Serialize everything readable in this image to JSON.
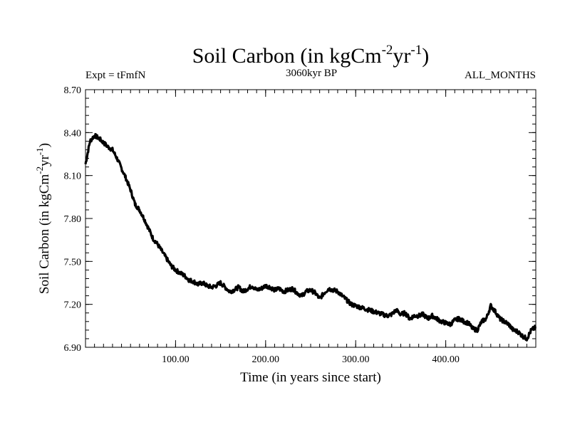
{
  "chart_data": {
    "type": "line",
    "title": "Soil Carbon (in kgCm",
    "title_sup1": "-2",
    "title_mid": "yr",
    "title_sup2": "-1",
    "title_end": ")",
    "subtitle_left": "Expt = tFmfN",
    "subtitle_center": "3060kyr BP",
    "subtitle_right": "ALL_MONTHS",
    "xlabel": "Time (in years since start)",
    "ylabel_main": "Soil Carbon (in kgCm",
    "ylabel_sup1": "-2",
    "ylabel_mid": "yr",
    "ylabel_sup2": "-1",
    "ylabel_end": ")",
    "xlim": [
      0,
      500
    ],
    "ylim": [
      6.9,
      8.7
    ],
    "xticks": [
      100,
      200,
      300,
      400
    ],
    "xtick_labels": [
      "100.00",
      "200.00",
      "300.00",
      "400.00"
    ],
    "xminor_step": 10,
    "yticks": [
      6.9,
      7.2,
      7.5,
      7.8,
      8.1,
      8.4,
      8.7
    ],
    "ytick_labels": [
      "6.90",
      "7.20",
      "7.50",
      "7.80",
      "8.10",
      "8.40",
      "8.70"
    ],
    "yminor_step": 0.06,
    "series": [
      {
        "name": "Soil Carbon",
        "color": "#000000",
        "x": [
          0,
          5,
          10,
          15,
          20,
          25,
          30,
          35,
          40,
          45,
          50,
          55,
          60,
          65,
          70,
          75,
          80,
          85,
          90,
          95,
          100,
          105,
          110,
          115,
          120,
          125,
          130,
          135,
          140,
          145,
          150,
          155,
          160,
          165,
          170,
          175,
          180,
          185,
          190,
          195,
          200,
          205,
          210,
          215,
          220,
          225,
          230,
          235,
          240,
          245,
          250,
          255,
          260,
          265,
          270,
          275,
          280,
          285,
          290,
          295,
          300,
          305,
          310,
          315,
          320,
          325,
          330,
          335,
          340,
          345,
          350,
          355,
          360,
          365,
          370,
          375,
          380,
          385,
          390,
          395,
          400,
          405,
          410,
          415,
          420,
          425,
          430,
          435,
          440,
          445,
          450,
          455,
          460,
          465,
          470,
          475,
          480,
          485,
          490,
          495,
          500
        ],
        "values": [
          8.18,
          8.34,
          8.38,
          8.36,
          8.33,
          8.3,
          8.28,
          8.22,
          8.15,
          8.08,
          8.0,
          7.9,
          7.86,
          7.8,
          7.73,
          7.66,
          7.62,
          7.57,
          7.52,
          7.47,
          7.44,
          7.42,
          7.4,
          7.37,
          7.36,
          7.34,
          7.35,
          7.33,
          7.32,
          7.33,
          7.35,
          7.32,
          7.29,
          7.3,
          7.32,
          7.29,
          7.31,
          7.33,
          7.3,
          7.31,
          7.33,
          7.32,
          7.3,
          7.31,
          7.29,
          7.3,
          7.31,
          7.28,
          7.26,
          7.29,
          7.3,
          7.28,
          7.24,
          7.28,
          7.31,
          7.3,
          7.29,
          7.26,
          7.23,
          7.2,
          7.19,
          7.18,
          7.17,
          7.16,
          7.15,
          7.14,
          7.13,
          7.12,
          7.13,
          7.16,
          7.13,
          7.14,
          7.1,
          7.12,
          7.12,
          7.13,
          7.1,
          7.12,
          7.1,
          7.08,
          7.07,
          7.06,
          7.09,
          7.1,
          7.08,
          7.07,
          7.03,
          7.02,
          7.08,
          7.1,
          7.19,
          7.15,
          7.1,
          7.08,
          7.06,
          7.02,
          7.01,
          6.98,
          6.96,
          7.02,
          7.04
        ]
      }
    ]
  }
}
